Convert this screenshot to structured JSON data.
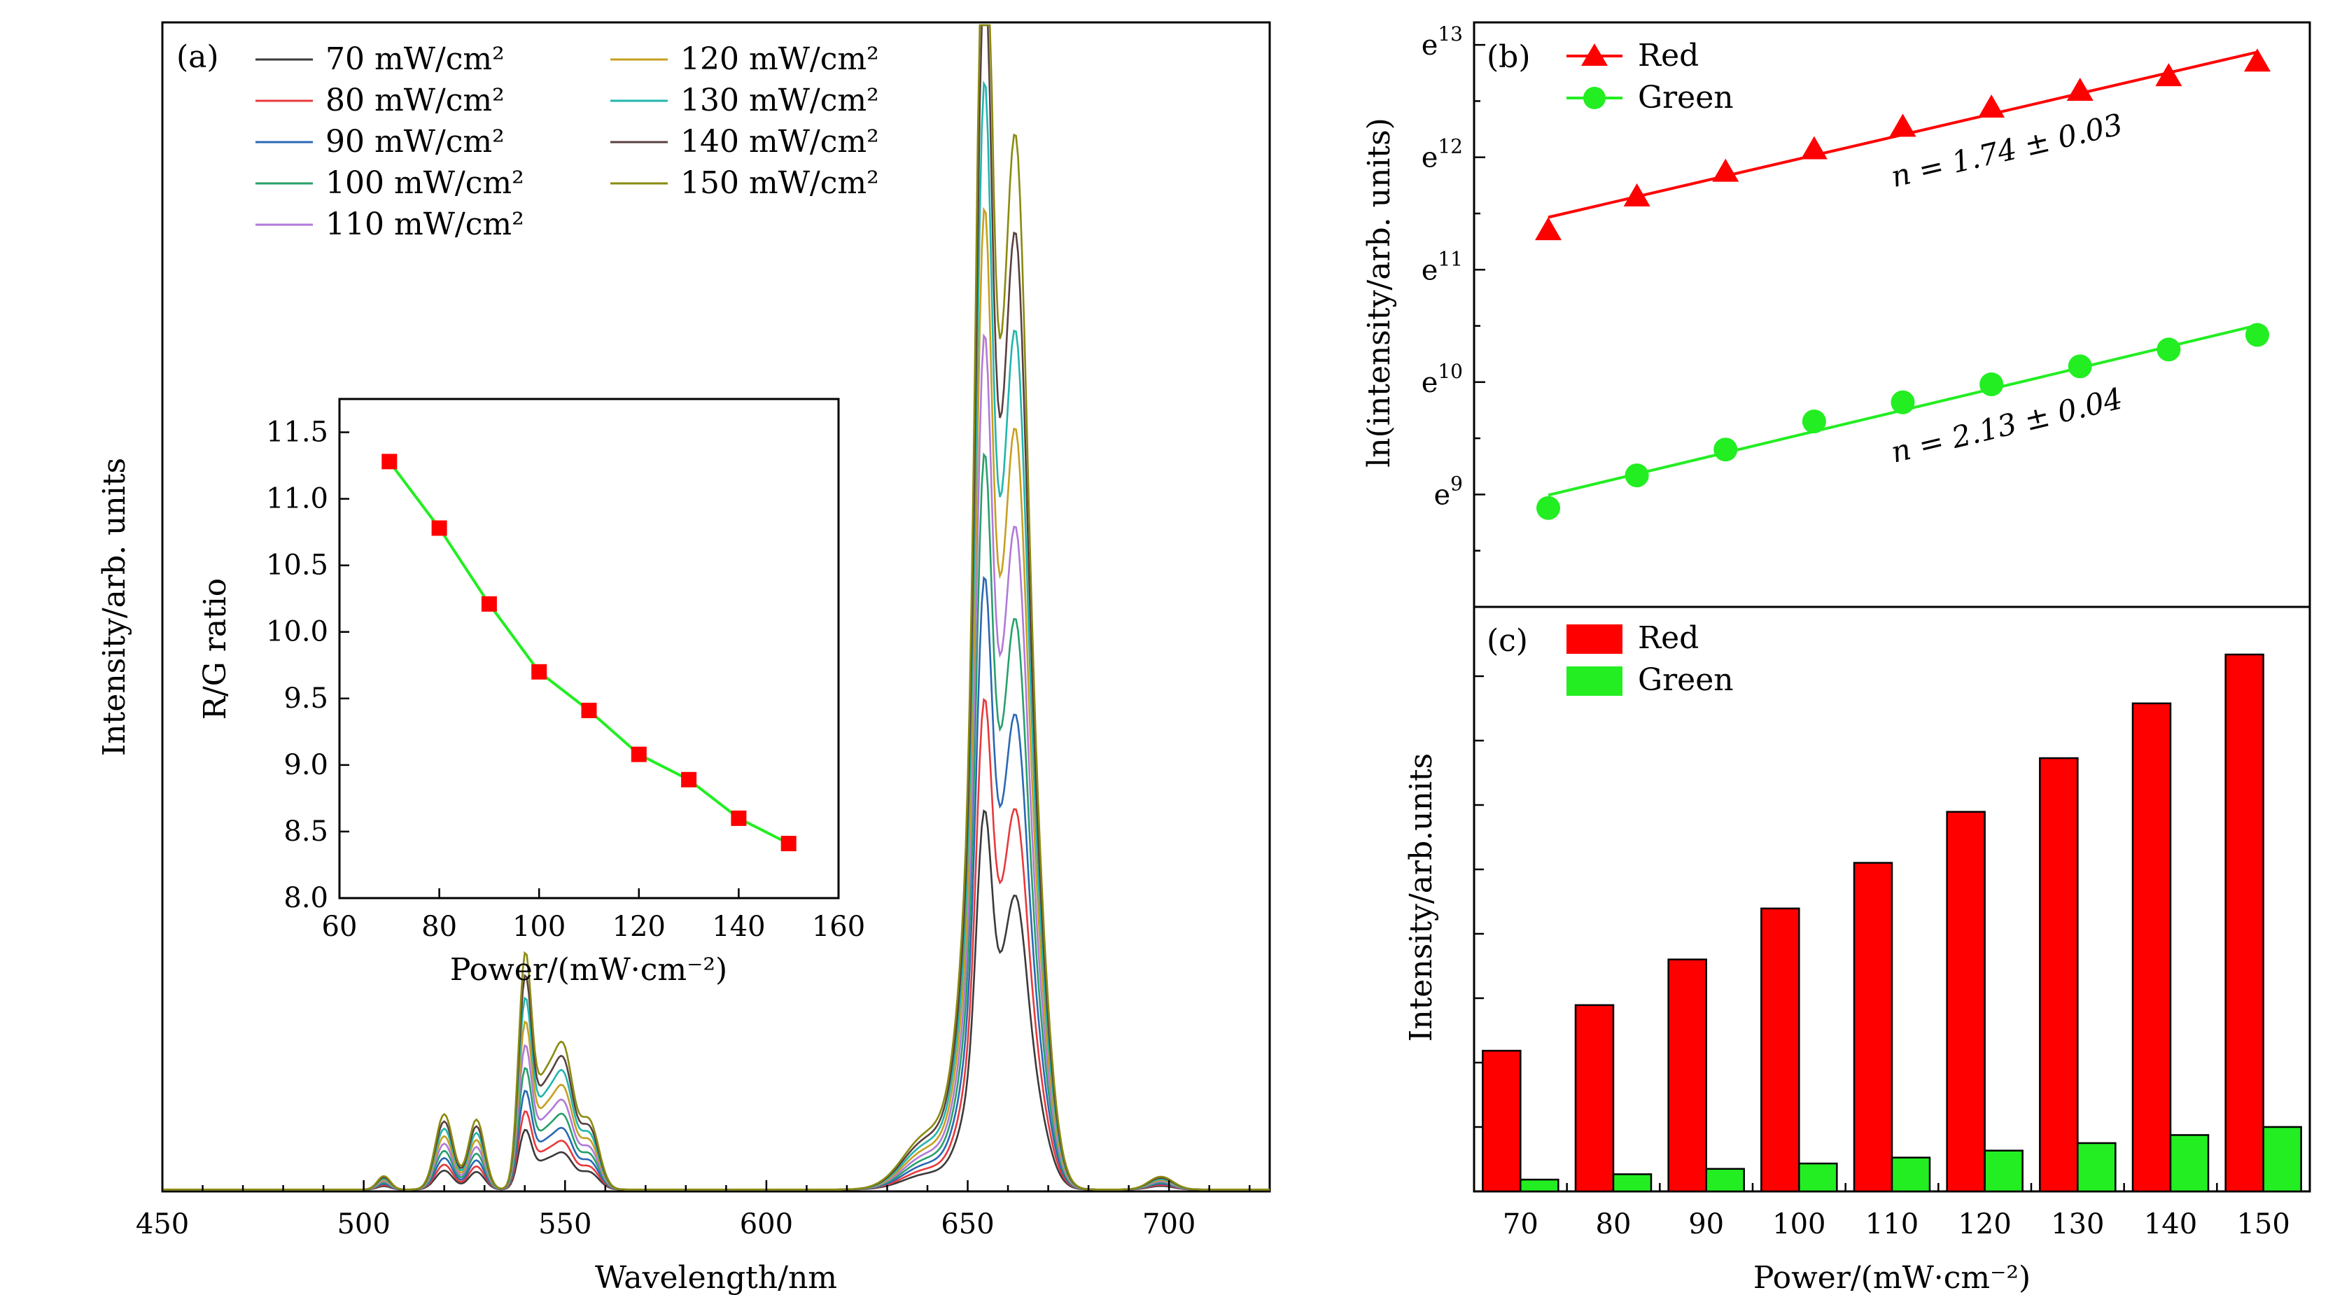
{
  "chart_data": [
    {
      "panel": "(a)",
      "type": "line",
      "xlabel": "Wavelength/nm",
      "ylabel": "Intensity/arb. units",
      "xlim": [
        450,
        725
      ],
      "xticks": [
        "450",
        "500",
        "550",
        "600",
        "650",
        "700"
      ],
      "x_peaks": [
        505,
        520,
        528,
        540,
        545,
        550,
        556,
        654,
        656,
        662,
        665,
        698
      ],
      "series": [
        {
          "name": "70 mW/cm²",
          "color": "#3a3a3a",
          "peaks": {
            "g540": 0.058,
            "r654": 0.255
          }
        },
        {
          "name": "80 mW/cm²",
          "color": "#e8393c",
          "peaks": {
            "g540": 0.076,
            "r654": 0.33
          }
        },
        {
          "name": "90 mW/cm²",
          "color": "#2a68b4",
          "peaks": {
            "g540": 0.096,
            "r654": 0.412
          }
        },
        {
          "name": "100 mW/cm²",
          "color": "#27a06a",
          "peaks": {
            "g540": 0.118,
            "r654": 0.495
          }
        },
        {
          "name": "110 mW/cm²",
          "color": "#b07ad8",
          "peaks": {
            "g540": 0.14,
            "r654": 0.575
          }
        },
        {
          "name": "120 mW/cm²",
          "color": "#c6a020",
          "peaks": {
            "g540": 0.163,
            "r654": 0.66
          }
        },
        {
          "name": "130 mW/cm²",
          "color": "#21b5ad",
          "peaks": {
            "g540": 0.186,
            "r654": 0.745
          }
        },
        {
          "name": "140 mW/cm²",
          "color": "#5a4040",
          "peaks": {
            "g540": 0.208,
            "r654": 0.83
          }
        },
        {
          "name": "150 mW/cm²",
          "color": "#8a8a10",
          "peaks": {
            "g540": 0.23,
            "r654": 0.915
          }
        }
      ]
    },
    {
      "panel": "(a) inset",
      "type": "line",
      "xlabel": "Power/(mW·cm⁻²)",
      "ylabel": "R/G ratio",
      "xlim": [
        60,
        160
      ],
      "ylim": [
        8.0,
        11.75
      ],
      "xticks": [
        "60",
        "80",
        "100",
        "120",
        "140",
        "160"
      ],
      "yticks": [
        "8.0",
        "8.5",
        "9.0",
        "9.5",
        "10.0",
        "10.5",
        "11.0",
        "11.5"
      ],
      "x": [
        70,
        80,
        90,
        100,
        110,
        120,
        130,
        140,
        150
      ],
      "y": [
        11.28,
        10.78,
        10.21,
        9.7,
        9.41,
        9.08,
        8.89,
        8.6,
        8.41
      ],
      "line_color": "#22ee22",
      "marker_color": "#ff0000"
    },
    {
      "panel": "(b)",
      "type": "line",
      "xlabel": "",
      "ylabel": "ln(intensity/arb. units)",
      "ylim": [
        8.0,
        13.2
      ],
      "yticks": [
        {
          "base": "e",
          "exp": "9",
          "value": 9
        },
        {
          "base": "e",
          "exp": "10",
          "value": 10
        },
        {
          "base": "e",
          "exp": "11",
          "value": 11
        },
        {
          "base": "e",
          "exp": "12",
          "value": 12
        },
        {
          "base": "e",
          "exp": "13",
          "value": 13
        }
      ],
      "x": [
        70,
        80,
        90,
        100,
        110,
        120,
        130,
        140,
        150
      ],
      "series": [
        {
          "name": "Red",
          "color": "#ff0000",
          "marker": "triangle",
          "values": [
            11.35,
            11.65,
            11.87,
            12.07,
            12.27,
            12.44,
            12.59,
            12.72,
            12.85
          ],
          "fit_label": "n = 1.74 ± 0.03"
        },
        {
          "name": "Green",
          "color": "#22ee22",
          "marker": "circle",
          "values": [
            8.88,
            9.17,
            9.4,
            9.65,
            9.82,
            9.98,
            10.14,
            10.29,
            10.42
          ],
          "fit_label": "n = 2.13 ± 0.04"
        }
      ]
    },
    {
      "panel": "(c)",
      "type": "bar",
      "xlabel": "Power/(mW·cm⁻²)",
      "ylabel": "Intensity/arb.units",
      "categories": [
        "70",
        "80",
        "90",
        "100",
        "110",
        "120",
        "130",
        "140",
        "150"
      ],
      "series": [
        {
          "name": "Red",
          "color": "#ff0000",
          "values": [
            0.262,
            0.347,
            0.432,
            0.527,
            0.612,
            0.707,
            0.807,
            0.909,
            1.0
          ]
        },
        {
          "name": "Green",
          "color": "#22ee22",
          "values": [
            0.022,
            0.032,
            0.042,
            0.052,
            0.063,
            0.076,
            0.09,
            0.105,
            0.12
          ]
        }
      ]
    }
  ]
}
